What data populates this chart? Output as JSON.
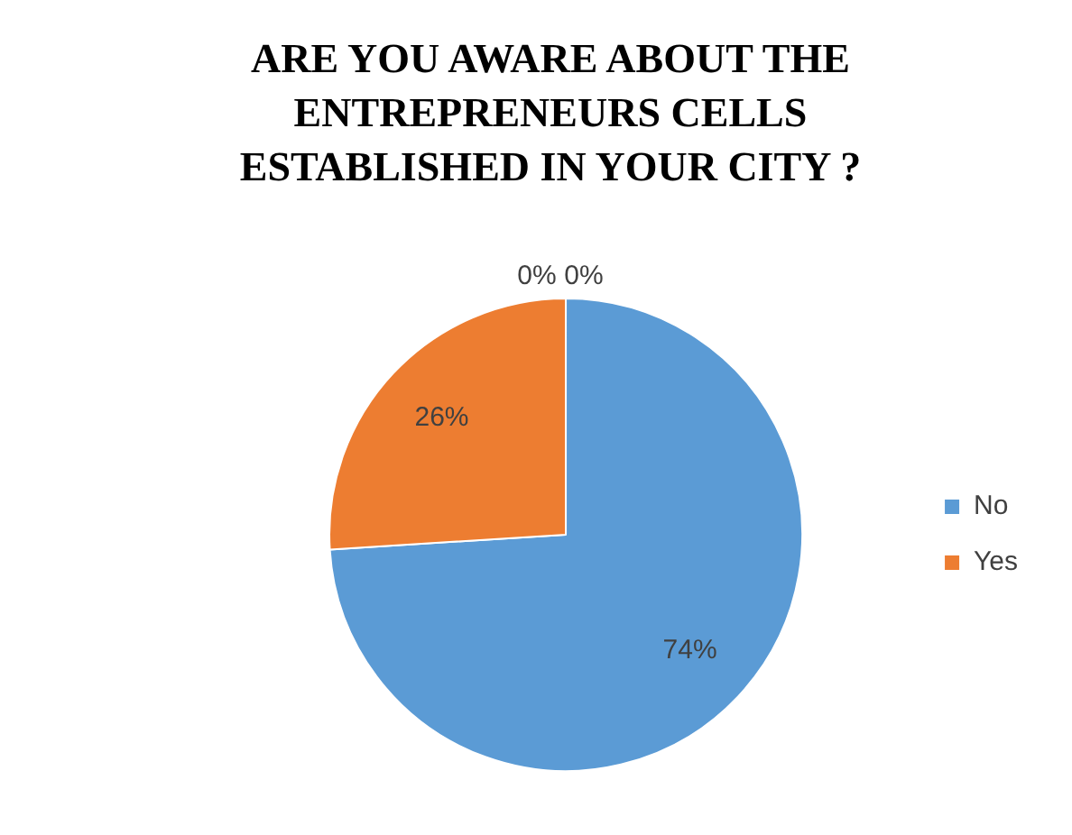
{
  "chart_data": {
    "type": "pie",
    "title": "ARE YOU AWARE ABOUT THE ENTREPRENEURS CELLS ESTABLISHED IN YOUR CITY ?",
    "categories": [
      "No",
      "Yes",
      null,
      null
    ],
    "values": [
      74,
      26,
      0,
      0
    ],
    "colors": [
      "#5b9bd5",
      "#ed7d31",
      "#a5a5a5",
      "#ffc000"
    ],
    "value_labels": [
      "74%",
      "26%",
      "0%",
      "0%"
    ],
    "legend": "right"
  }
}
